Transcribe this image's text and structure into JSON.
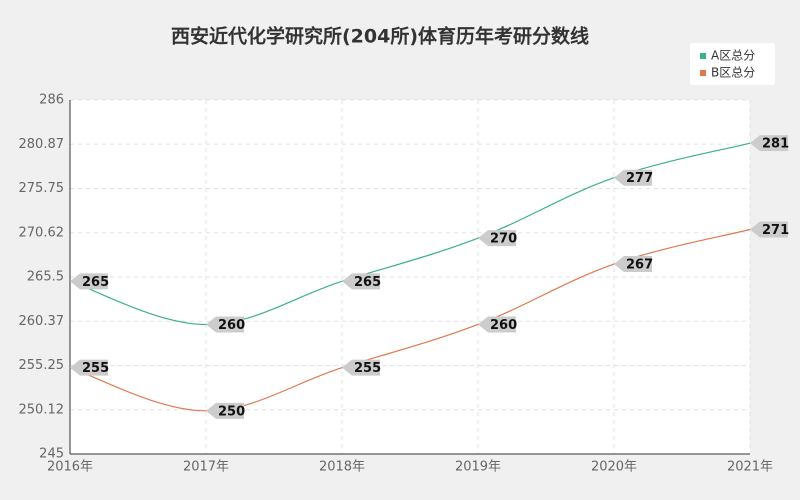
{
  "chart_data": {
    "type": "line",
    "title": "西安近代化学研究所(204所)体育历年考研分数线",
    "categories": [
      "2016年",
      "2017年",
      "2018年",
      "2019年",
      "2020年",
      "2021年"
    ],
    "series": [
      {
        "name": "A区总分",
        "color": "#3bb08f",
        "values": [
          265,
          260,
          265,
          270,
          277,
          281
        ]
      },
      {
        "name": "B区总分",
        "color": "#e0784f",
        "values": [
          255,
          250,
          255,
          260,
          267,
          271
        ]
      }
    ],
    "ylim": [
      245,
      286
    ],
    "yticks": [
      245,
      250.12,
      255.25,
      260.37,
      265.5,
      270.62,
      275.75,
      280.87,
      286
    ],
    "grid": true,
    "smooth": true,
    "legend_position": "top-right"
  }
}
